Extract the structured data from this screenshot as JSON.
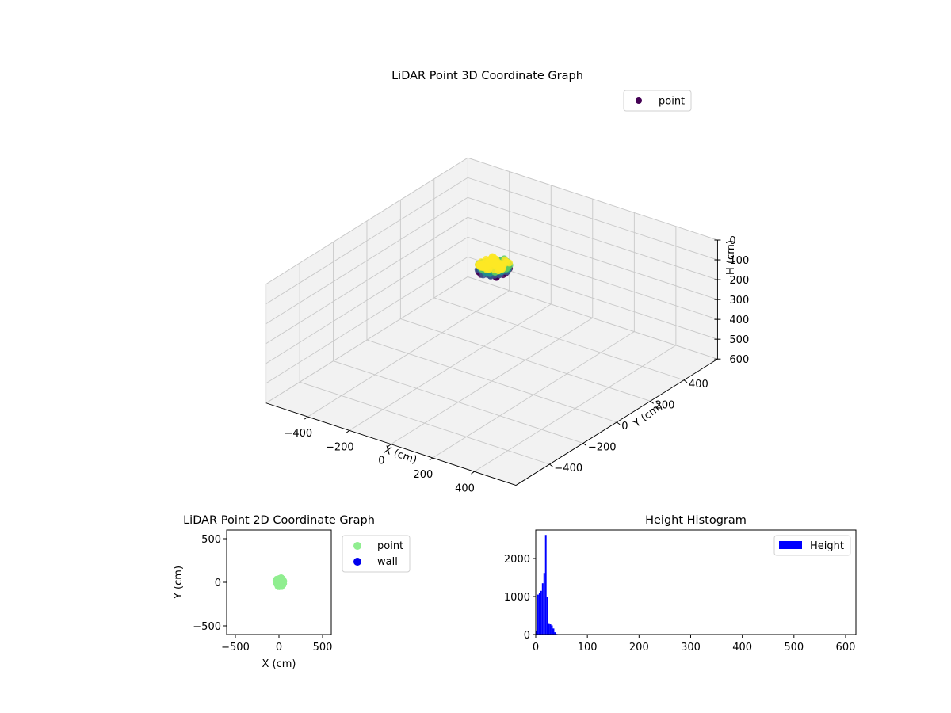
{
  "figure": {
    "background": "#ffffff",
    "pane_color": "#f2f2f2",
    "grid_color": "#c8c8c8"
  },
  "chart_data": [
    {
      "type": "scatter",
      "projection": "3d",
      "title": "LiDAR Point 3D Coordinate Graph",
      "xlabel": "X (cm)",
      "ylabel": "Y (cm)",
      "zlabel": "H (cm)",
      "xlim": [
        -600,
        600
      ],
      "ylim": [
        -600,
        600
      ],
      "zlim": [
        0,
        600
      ],
      "z_inverted": true,
      "xticks": [
        -400,
        -200,
        0,
        200,
        400
      ],
      "yticks": [
        -400,
        -200,
        0,
        200,
        400
      ],
      "zticks": [
        0,
        100,
        200,
        300,
        400,
        500,
        600
      ],
      "grid": true,
      "legend": {
        "placement": "top-right",
        "entries": [
          {
            "label": "point",
            "color": "#440154"
          }
        ]
      },
      "colormap": "viridis",
      "series": [
        {
          "name": "point",
          "cluster_center": [
            10,
            0,
            20
          ],
          "cluster_radius_xy": 60,
          "height_range": [
            0,
            40
          ],
          "colors": [
            "#440154",
            "#3b528b",
            "#21908d",
            "#5dc963",
            "#fde725"
          ]
        }
      ]
    },
    {
      "type": "scatter",
      "title": "LiDAR Point 2D Coordinate Graph",
      "xlabel": "X (cm)",
      "ylabel": "Y (cm)",
      "xlim": [
        -600,
        600
      ],
      "ylim": [
        -600,
        600
      ],
      "xticks": [
        -500,
        0,
        500
      ],
      "yticks": [
        -500,
        0,
        500
      ],
      "grid": false,
      "legend": {
        "placement": "outside-right",
        "entries": [
          {
            "label": "point",
            "color": "#90ee90"
          },
          {
            "label": "wall",
            "color": "#0000ee"
          }
        ]
      },
      "series": [
        {
          "name": "point",
          "color": "#90ee90",
          "cluster_center": [
            10,
            0
          ],
          "cluster_extent": [
            [
              -20,
              100
            ],
            [
              -70,
              65
            ]
          ]
        },
        {
          "name": "wall",
          "color": "#0000ee",
          "points": []
        }
      ]
    },
    {
      "type": "bar",
      "subtype": "histogram",
      "title": "Height Histogram",
      "xlabel": "",
      "ylabel": "",
      "xlim": [
        0,
        620
      ],
      "ylim": [
        0,
        2750
      ],
      "xticks": [
        0,
        100,
        200,
        300,
        400,
        500,
        600
      ],
      "yticks": [
        0,
        1000,
        2000
      ],
      "grid": false,
      "legend": {
        "placement": "top-right",
        "entries": [
          {
            "label": "Height",
            "color": "#0000ff"
          }
        ]
      },
      "series": [
        {
          "name": "Height",
          "color": "#0000ff",
          "bins": [
            {
              "x0": 0,
              "x1": 3,
              "value": 100
            },
            {
              "x0": 3,
              "x1": 6,
              "value": 1050
            },
            {
              "x0": 6,
              "x1": 9,
              "value": 1100
            },
            {
              "x0": 9,
              "x1": 12,
              "value": 1150
            },
            {
              "x0": 12,
              "x1": 15,
              "value": 1350
            },
            {
              "x0": 15,
              "x1": 18,
              "value": 1620
            },
            {
              "x0": 18,
              "x1": 21,
              "value": 2620
            },
            {
              "x0": 21,
              "x1": 24,
              "value": 980
            },
            {
              "x0": 24,
              "x1": 27,
              "value": 280
            },
            {
              "x0": 27,
              "x1": 30,
              "value": 270
            },
            {
              "x0": 30,
              "x1": 33,
              "value": 240
            },
            {
              "x0": 33,
              "x1": 36,
              "value": 160
            },
            {
              "x0": 36,
              "x1": 39,
              "value": 60
            },
            {
              "x0": 39,
              "x1": 42,
              "value": 15
            }
          ]
        }
      ]
    }
  ]
}
